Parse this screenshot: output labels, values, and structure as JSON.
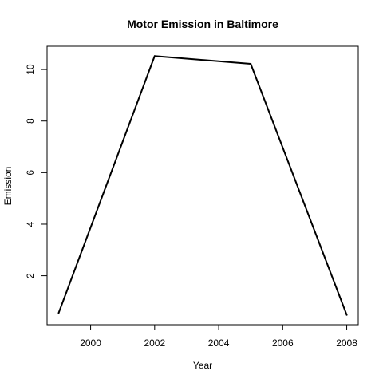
{
  "chart_data": {
    "type": "line",
    "title": "Motor Emission in Baltimore",
    "xlabel": "Year",
    "ylabel": "Emission",
    "x": [
      1999,
      2002,
      2005,
      2008
    ],
    "series": [
      {
        "values": [
          0.55,
          10.52,
          10.22,
          0.48
        ]
      }
    ],
    "xlim": [
      1998.64,
      2008.36
    ],
    "ylim": [
      0.1,
      10.9
    ],
    "xticks": [
      2000,
      2002,
      2004,
      2006,
      2008
    ],
    "yticks": [
      2,
      4,
      6,
      8,
      10
    ],
    "grid": false,
    "line_color": "#000000"
  }
}
